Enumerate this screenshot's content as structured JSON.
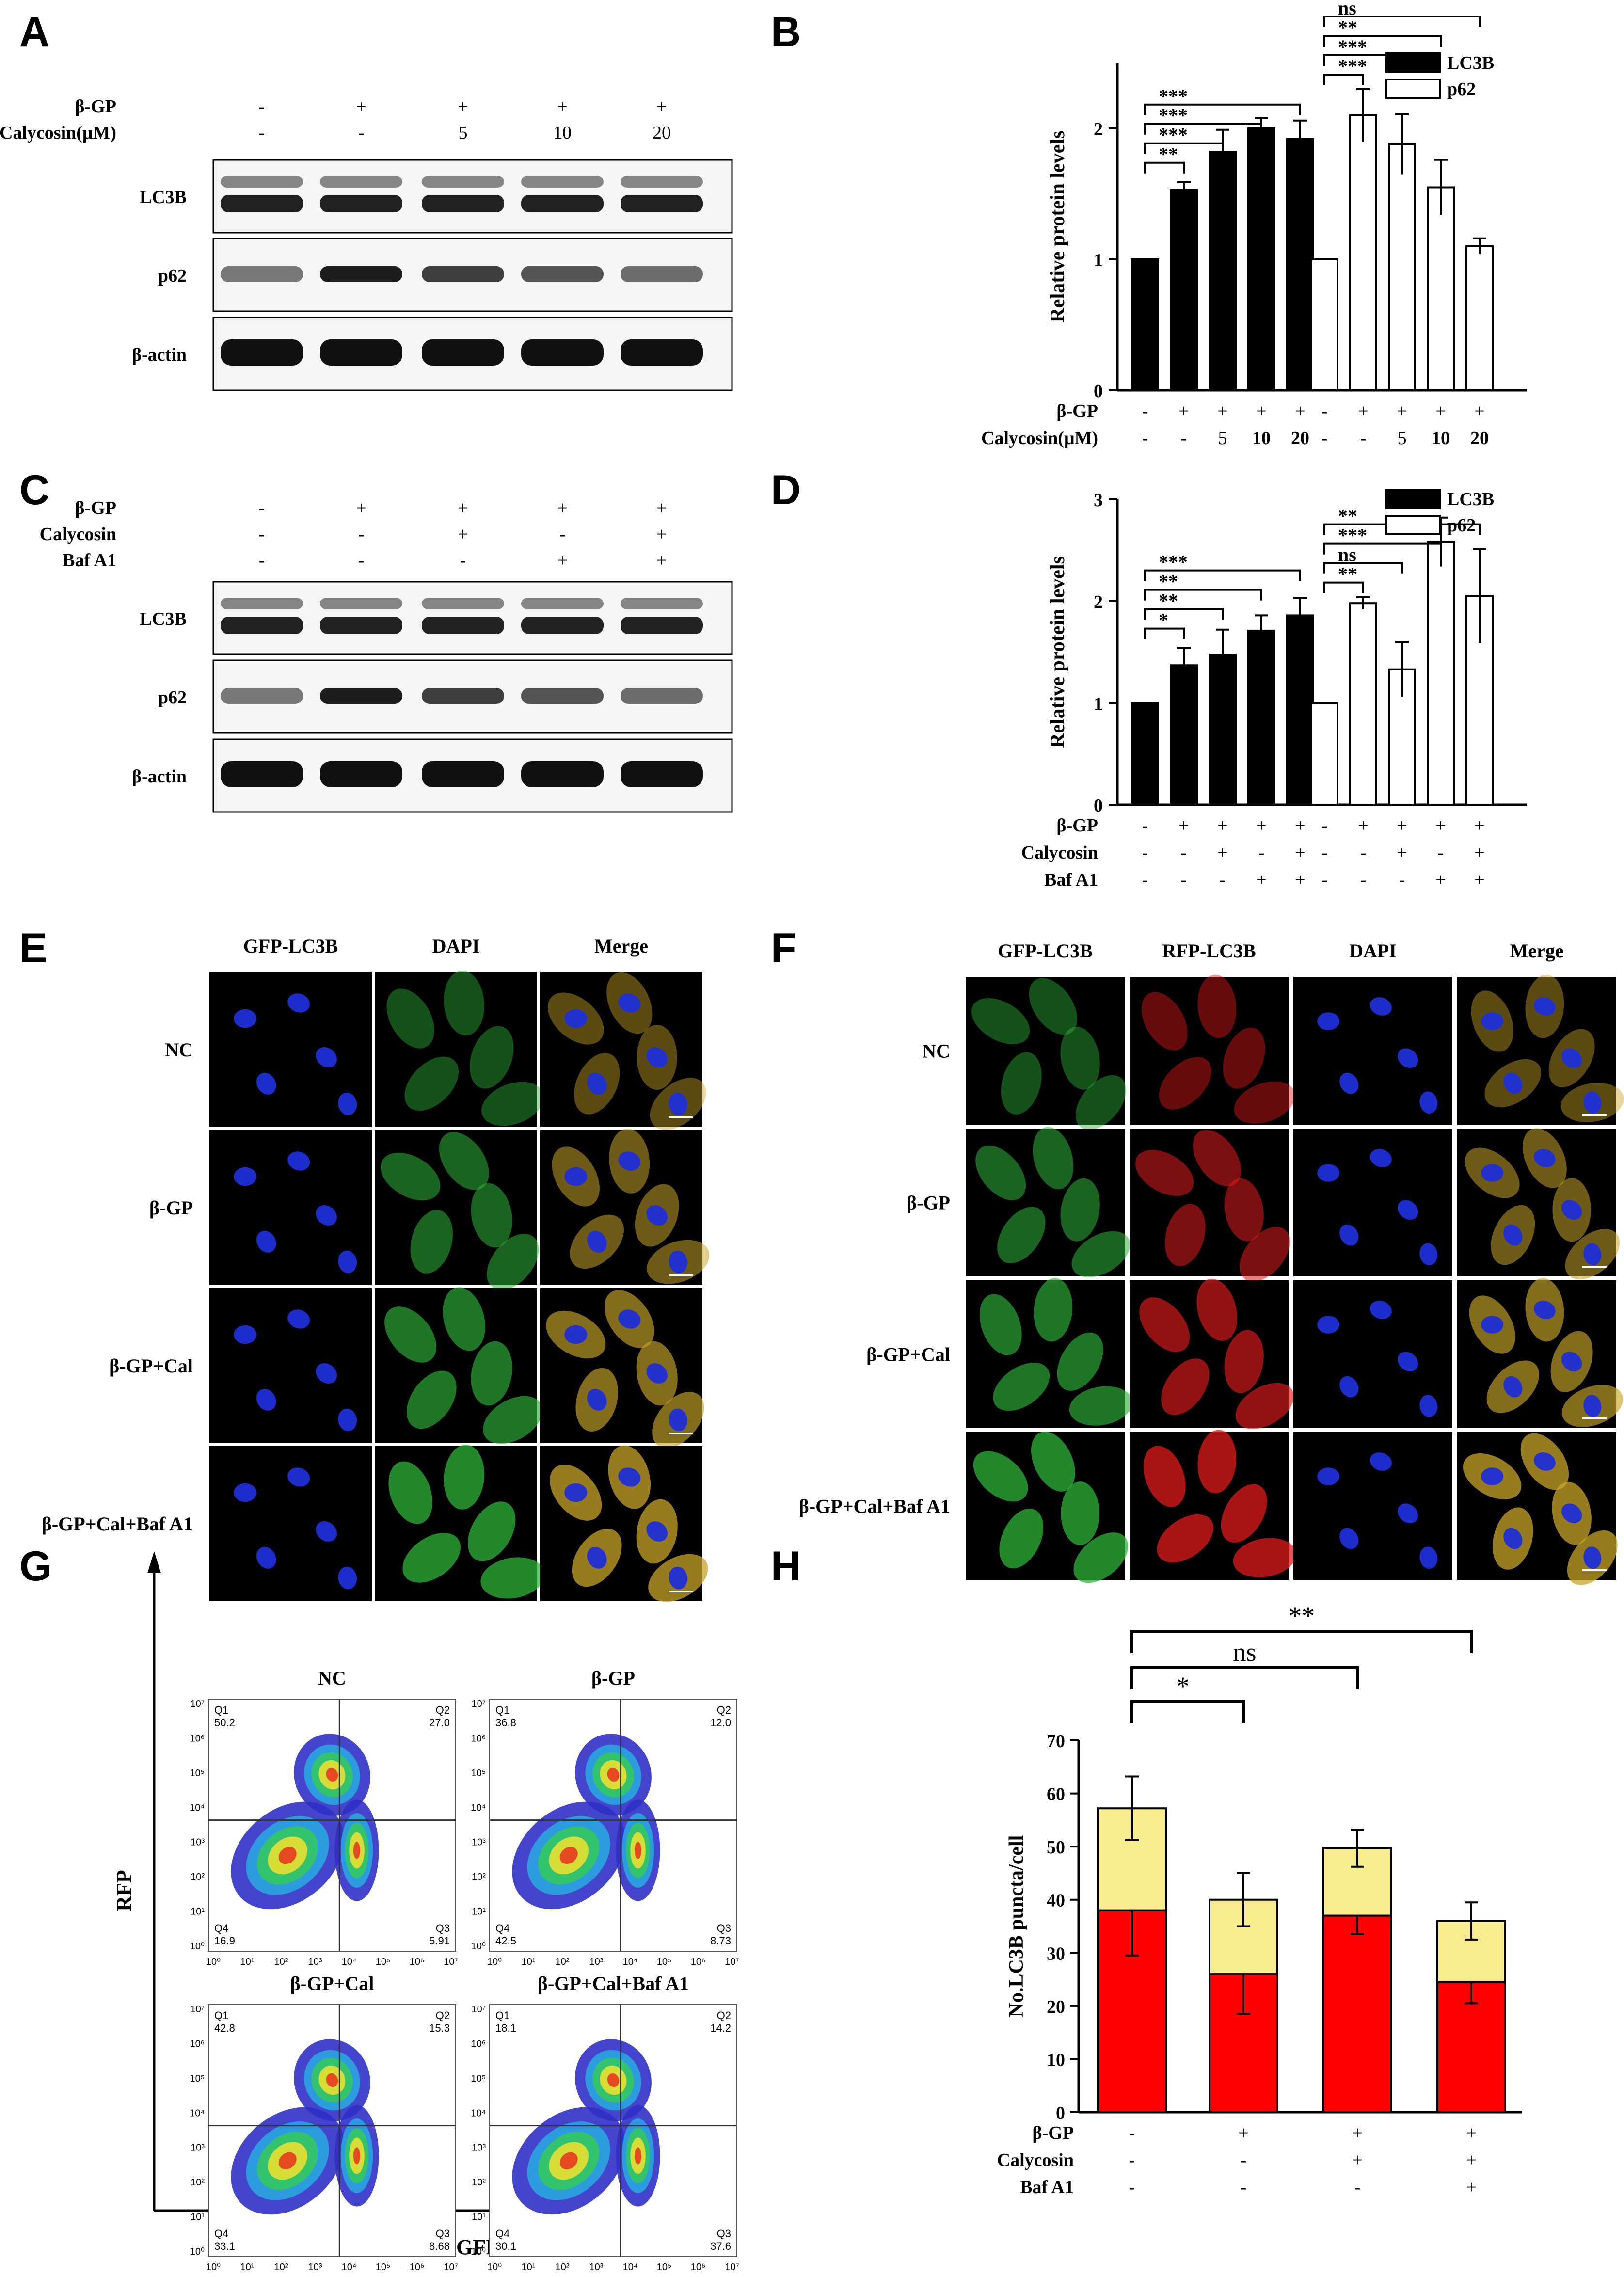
{
  "panel_letters": [
    "A",
    "B",
    "C",
    "D",
    "E",
    "F",
    "G",
    "H"
  ],
  "colors": {
    "dapi": "#1f2fd6",
    "gfp": "#2fb53a",
    "rfp": "#e21b1b",
    "merge": "#c9a62a",
    "yellow_bar": "#f7ec8e",
    "red_bar": "#ff0000",
    "black_bar": "#000000"
  },
  "panelA": {
    "treatments": [
      {
        "label": "β-GP",
        "values": [
          "-",
          "+",
          "+",
          "+",
          "+"
        ]
      },
      {
        "label": "Calycosin(μM)",
        "values": [
          "-",
          "-",
          "5",
          "10",
          "20"
        ]
      }
    ],
    "rows": [
      "LC3B",
      "p62",
      "β-actin"
    ]
  },
  "panelC": {
    "treatments": [
      {
        "label": "β-GP",
        "values": [
          "-",
          "+",
          "+",
          "+",
          "+"
        ]
      },
      {
        "label": "Calycosin",
        "values": [
          "-",
          "-",
          "+",
          "-",
          "+"
        ]
      },
      {
        "label": "Baf A1",
        "values": [
          "-",
          "-",
          "-",
          "+",
          "+"
        ]
      }
    ],
    "rows": [
      "LC3B",
      "p62",
      "β-actin"
    ]
  },
  "panelE": {
    "columns": [
      "GFP-LC3B",
      "DAPI",
      "Merge"
    ],
    "rows": [
      "NC",
      "β-GP",
      "β-GP+Cal",
      "β-GP+Cal+Baf A1"
    ]
  },
  "panelF": {
    "columns": [
      "GFP-LC3B",
      "RFP-LC3B",
      "DAPI",
      "Merge"
    ],
    "rows": [
      "NC",
      "β-GP",
      "β-GP+Cal",
      "β-GP+Cal+Baf A1"
    ]
  },
  "panelG": {
    "xlabel": "GFP",
    "ylabel": "RFP",
    "decade_ticks": [
      "10⁰",
      "10¹",
      "10²",
      "10³",
      "10⁴",
      "10⁵",
      "10⁶",
      "10⁷"
    ],
    "plots": [
      {
        "title": "NC",
        "Q1": "50.2",
        "Q2": "27.0",
        "Q3": "5.91",
        "Q4": "16.9"
      },
      {
        "title": "β-GP",
        "Q1": "36.8",
        "Q2": "12.0",
        "Q3": "8.73",
        "Q4": "42.5"
      },
      {
        "title": "β-GP+Cal",
        "Q1": "42.8",
        "Q2": "15.3",
        "Q3": "8.68",
        "Q4": "33.1"
      },
      {
        "title": "β-GP+Cal+Baf A1",
        "Q1": "18.1",
        "Q2": "14.2",
        "Q3": "37.6",
        "Q4": "30.1"
      }
    ]
  },
  "chart_data": [
    {
      "panel": "B",
      "type": "bar",
      "ylabel": "Relative protein levels",
      "ylim": [
        0,
        2.5
      ],
      "yticks": [
        "0",
        "1",
        "2"
      ],
      "legend": [
        "LC3B",
        "p62"
      ],
      "legend_position": "top-right",
      "treatments": [
        {
          "label": "β-GP",
          "values": [
            "-",
            "+",
            "+",
            "+",
            "+"
          ]
        },
        {
          "label": "Calycosin(μM)",
          "values": [
            "-",
            "-",
            "5",
            "10",
            "20"
          ]
        }
      ],
      "series": [
        {
          "name": "LC3B",
          "values": [
            1.0,
            1.53,
            1.82,
            2.0,
            1.92
          ],
          "errors": [
            0,
            0.06,
            0.17,
            0.08,
            0.14
          ]
        },
        {
          "name": "p62",
          "values": [
            1.0,
            2.1,
            1.88,
            1.55,
            1.1
          ],
          "errors": [
            0,
            0.2,
            0.23,
            0.21,
            0.06
          ]
        }
      ],
      "significance": [
        {
          "series": "LC3B",
          "from": 0,
          "to": 1,
          "label": "**"
        },
        {
          "series": "LC3B",
          "from": 0,
          "to": 2,
          "label": "***"
        },
        {
          "series": "LC3B",
          "from": 0,
          "to": 3,
          "label": "***"
        },
        {
          "series": "LC3B",
          "from": 0,
          "to": 4,
          "label": "***"
        },
        {
          "series": "p62",
          "from": 0,
          "to": 1,
          "label": "***"
        },
        {
          "series": "p62",
          "from": 0,
          "to": 2,
          "label": "***"
        },
        {
          "series": "p62",
          "from": 0,
          "to": 3,
          "label": "**"
        },
        {
          "series": "p62",
          "from": 0,
          "to": 4,
          "label": "ns"
        }
      ]
    },
    {
      "panel": "D",
      "type": "bar",
      "ylabel": "Relative protein levels",
      "ylim": [
        0,
        3
      ],
      "yticks": [
        "0",
        "1",
        "2",
        "3"
      ],
      "legend": [
        "LC3B",
        "p62"
      ],
      "legend_position": "top-right",
      "treatments": [
        {
          "label": "β-GP",
          "values": [
            "-",
            "+",
            "+",
            "+",
            "+"
          ]
        },
        {
          "label": "Calycosin",
          "values": [
            "-",
            "-",
            "+",
            "-",
            "+"
          ]
        },
        {
          "label": "Baf A1",
          "values": [
            "-",
            "-",
            "-",
            "+",
            "+"
          ]
        }
      ],
      "series": [
        {
          "name": "LC3B",
          "values": [
            1.0,
            1.37,
            1.47,
            1.71,
            1.86
          ],
          "errors": [
            0,
            0.17,
            0.25,
            0.15,
            0.17
          ]
        },
        {
          "name": "p62",
          "values": [
            1.0,
            1.98,
            1.33,
            2.58,
            2.05
          ],
          "errors": [
            0,
            0.06,
            0.27,
            0.24,
            0.46
          ]
        }
      ],
      "significance": [
        {
          "series": "LC3B",
          "from": 0,
          "to": 1,
          "label": "*"
        },
        {
          "series": "LC3B",
          "from": 0,
          "to": 2,
          "label": "**"
        },
        {
          "series": "LC3B",
          "from": 0,
          "to": 3,
          "label": "**"
        },
        {
          "series": "LC3B",
          "from": 0,
          "to": 4,
          "label": "***"
        },
        {
          "series": "p62",
          "from": 0,
          "to": 1,
          "label": "**"
        },
        {
          "series": "p62",
          "from": 0,
          "to": 2,
          "label": "ns"
        },
        {
          "series": "p62",
          "from": 0,
          "to": 3,
          "label": "***"
        },
        {
          "series": "p62",
          "from": 0,
          "to": 4,
          "label": "**"
        }
      ]
    },
    {
      "panel": "H",
      "type": "bar",
      "stacked": true,
      "ylabel": "No.LC3B puncta/cell",
      "ylim": [
        0,
        70
      ],
      "yticks": [
        "0",
        "10",
        "20",
        "30",
        "40",
        "50",
        "60",
        "70"
      ],
      "treatments": [
        {
          "label": "β-GP",
          "values": [
            "-",
            "+",
            "+",
            "+"
          ]
        },
        {
          "label": "Calycosin",
          "values": [
            "-",
            "-",
            "+",
            "+"
          ]
        },
        {
          "label": "Baf A1",
          "values": [
            "-",
            "-",
            "-",
            "+"
          ]
        }
      ],
      "series": [
        {
          "color": "red",
          "values": [
            38,
            26,
            37,
            24.5
          ],
          "errors": [
            8.5,
            7.5,
            3.5,
            4
          ]
        },
        {
          "color": "yellow",
          "values": [
            19.2,
            14,
            12.7,
            11.5
          ],
          "errors": [
            6,
            5,
            3.5,
            3.5
          ]
        }
      ],
      "significance": [
        {
          "from": 0,
          "to": 1,
          "label": "*"
        },
        {
          "from": 0,
          "to": 2,
          "label": "ns"
        },
        {
          "from": 0,
          "to": 3,
          "label": "**"
        }
      ]
    }
  ]
}
